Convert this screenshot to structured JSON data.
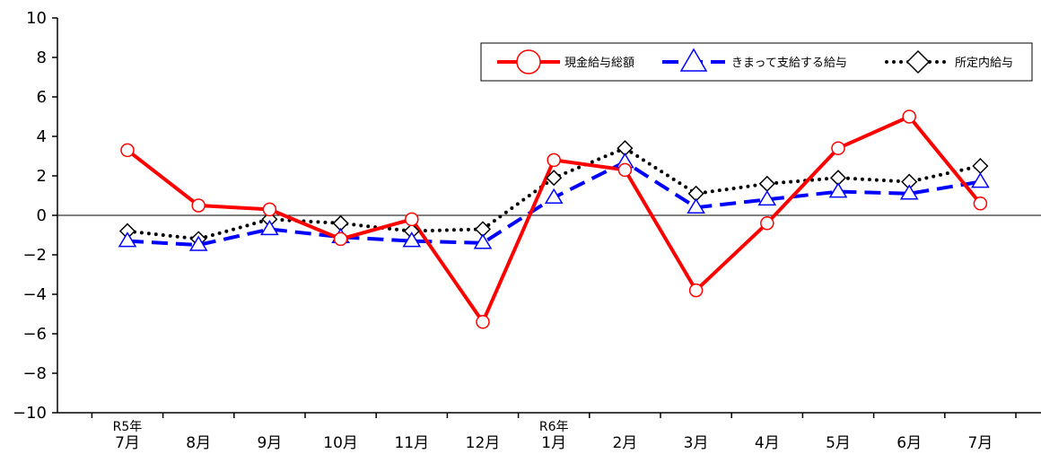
{
  "chart_data": {
    "type": "line",
    "categories": [
      "7月",
      "8月",
      "9月",
      "10月",
      "11月",
      "12月",
      "1月",
      "2月",
      "3月",
      "4月",
      "5月",
      "6月",
      "7月"
    ],
    "era_labels": [
      {
        "index": 0,
        "text": "R5年"
      },
      {
        "index": 6,
        "text": "R6年"
      }
    ],
    "ylim": [
      -10,
      10
    ],
    "yticks": [
      10,
      8,
      6,
      4,
      2,
      0,
      -2,
      -4,
      -6,
      -8,
      -10
    ],
    "ytick_labels": [
      "10",
      "8",
      "6",
      "4",
      "2",
      "0",
      "−2",
      "−4",
      "−6",
      "−8",
      "−10"
    ],
    "grid": false,
    "legend_position": "top-right",
    "series": [
      {
        "name": "現金給与総額",
        "color": "#ff0000",
        "line_style": "solid",
        "marker": "circle",
        "values": [
          3.3,
          0.5,
          0.3,
          -1.2,
          -0.2,
          -5.4,
          2.8,
          2.3,
          -3.8,
          -0.4,
          3.4,
          5.0,
          0.6
        ]
      },
      {
        "name": "きまって支給する給与",
        "color": "#0000ff",
        "line_style": "dashed",
        "marker": "triangle",
        "values": [
          -1.3,
          -1.5,
          -0.7,
          -1.1,
          -1.3,
          -1.4,
          0.9,
          2.7,
          0.4,
          0.8,
          1.2,
          1.1,
          1.7
        ]
      },
      {
        "name": "所定内給与",
        "color": "#000000",
        "line_style": "dotted",
        "marker": "diamond",
        "values": [
          -0.8,
          -1.2,
          -0.2,
          -0.4,
          -0.8,
          -0.7,
          1.9,
          3.4,
          1.1,
          1.6,
          1.9,
          1.7,
          2.5
        ]
      }
    ]
  }
}
